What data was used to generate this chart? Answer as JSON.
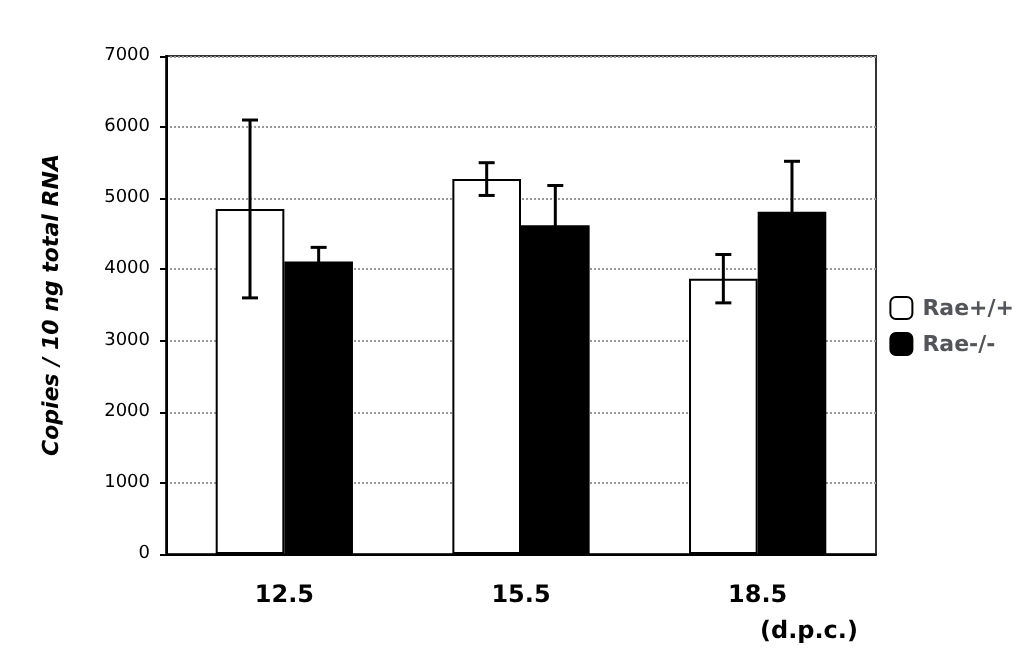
{
  "chart_data": {
    "type": "bar",
    "ylabel": "Copies / 10 ng total RNA",
    "xlabel": "(d.p.c.)",
    "categories": [
      "12.5",
      "15.5",
      "18.5"
    ],
    "series": [
      {
        "name": "Rae+/+",
        "color": "#ffffff",
        "values": [
          4850,
          5270,
          3870
        ],
        "errors": [
          1250,
          230,
          340
        ]
      },
      {
        "name": "Rae-/-",
        "color": "#000000",
        "values": [
          4110,
          4620,
          4810
        ],
        "errors": [
          200,
          560,
          710
        ]
      }
    ],
    "ylim": [
      0,
      7000
    ],
    "yticks": [
      0,
      1000,
      2000,
      3000,
      4000,
      5000,
      6000,
      7000
    ],
    "grid": "y",
    "legend": "right"
  }
}
